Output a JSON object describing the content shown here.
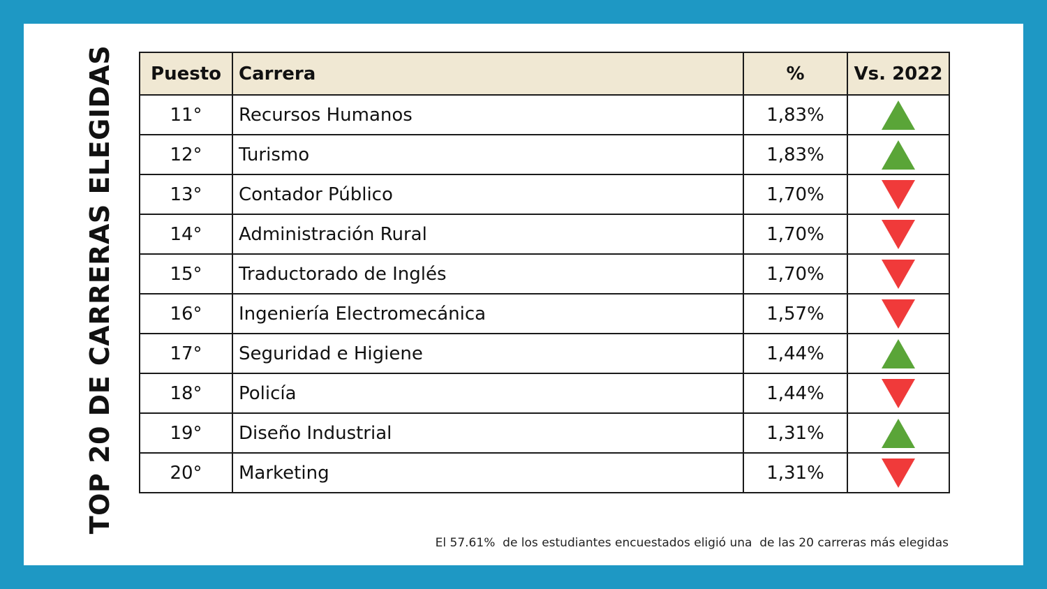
{
  "title": "TOP 20 DE CARRERAS ELEGIDAS",
  "table": {
    "headers": {
      "puesto": "Puesto",
      "carrera": "Carrera",
      "pct": "%",
      "vs": "Vs. 2022"
    },
    "rows": [
      {
        "puesto": "11°",
        "carrera": "Recursos Humanos",
        "pct": "1,83%",
        "trend": "up"
      },
      {
        "puesto": "12°",
        "carrera": "Turismo",
        "pct": "1,83%",
        "trend": "up"
      },
      {
        "puesto": "13°",
        "carrera": "Contador Público",
        "pct": "1,70%",
        "trend": "down"
      },
      {
        "puesto": "14°",
        "carrera": "Administración Rural",
        "pct": "1,70%",
        "trend": "down"
      },
      {
        "puesto": "15°",
        "carrera": "Traductorado de Inglés",
        "pct": "1,70%",
        "trend": "down"
      },
      {
        "puesto": "16°",
        "carrera": "Ingeniería Electromecánica",
        "pct": "1,57%",
        "trend": "down"
      },
      {
        "puesto": "17°",
        "carrera": "Seguridad e Higiene",
        "pct": "1,44%",
        "trend": "up"
      },
      {
        "puesto": "18°",
        "carrera": "Policía",
        "pct": "1,44%",
        "trend": "down"
      },
      {
        "puesto": "19°",
        "carrera": "Diseño Industrial",
        "pct": "1,31%",
        "trend": "up"
      },
      {
        "puesto": "20°",
        "carrera": "Marketing",
        "pct": "1,31%",
        "trend": "down"
      }
    ]
  },
  "footnote": "El 57.61%  de los estudiantes encuestados eligió una  de las 20 carreras más elegidas",
  "colors": {
    "border_frame": "#1e98c4",
    "header_bg": "#f0e8d3",
    "trend_up": "#5aa538",
    "trend_down": "#f03a3a"
  }
}
